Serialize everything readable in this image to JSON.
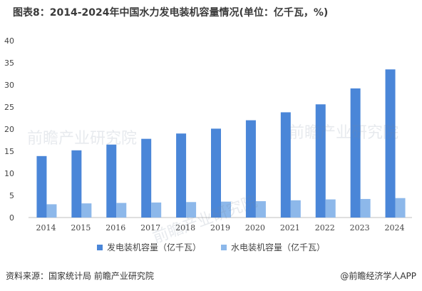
{
  "title": "图表8：2014-2024年中国水力发电装机容量情况(单位：亿千瓦，%)",
  "source": "资料来源：国家统计局 前瞻产业研究院",
  "brand": "@前瞻经济学人APP",
  "watermark": "前瞻产业研究院",
  "colors": {
    "series1": "#4a86d8",
    "series2": "#8db8ea",
    "axis": "#bfbfbf",
    "tick": "#444444"
  },
  "chart_data": {
    "type": "bar",
    "categories": [
      "2014",
      "2015",
      "2016",
      "2017",
      "2018",
      "2019",
      "2020",
      "2021",
      "2022",
      "2023",
      "2024"
    ],
    "series": [
      {
        "name": "发电装机容量（亿千瓦）",
        "values": [
          13.9,
          15.2,
          16.5,
          17.8,
          19.0,
          20.1,
          22.0,
          23.8,
          25.6,
          29.2,
          33.5
        ]
      },
      {
        "name": "水电装机容量（亿千瓦）",
        "values": [
          3.0,
          3.2,
          3.3,
          3.4,
          3.5,
          3.6,
          3.7,
          3.9,
          4.1,
          4.2,
          4.4
        ]
      }
    ],
    "yticks": [
      "0",
      "5",
      "10",
      "15",
      "20",
      "25",
      "30",
      "35",
      "40"
    ],
    "ylim": [
      0,
      40
    ],
    "grid": false,
    "legend": "bottom"
  }
}
